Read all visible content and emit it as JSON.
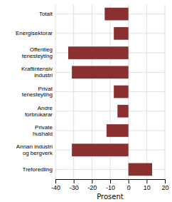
{
  "chart_data": {
    "type": "bar",
    "orientation": "horizontal",
    "categories": [
      "Totalt",
      "Energisektorar",
      "Offentleg\ntenesteyting",
      "Kraftintensiv\nindustri",
      "Privat\ntenesteyting",
      "Andre\nforbrukarar",
      "Private\nhushald",
      "Annan industri\nog bergverk",
      "Treforedling"
    ],
    "values": [
      -13,
      -8,
      -33,
      -31,
      -8,
      -6,
      -12,
      -31,
      13
    ],
    "color": "#8b3030",
    "xlim": [
      -40,
      20
    ],
    "xticks": [
      -40,
      -30,
      -20,
      -10,
      0,
      10,
      20
    ],
    "xlabel": "Prosent",
    "grid": true
  }
}
